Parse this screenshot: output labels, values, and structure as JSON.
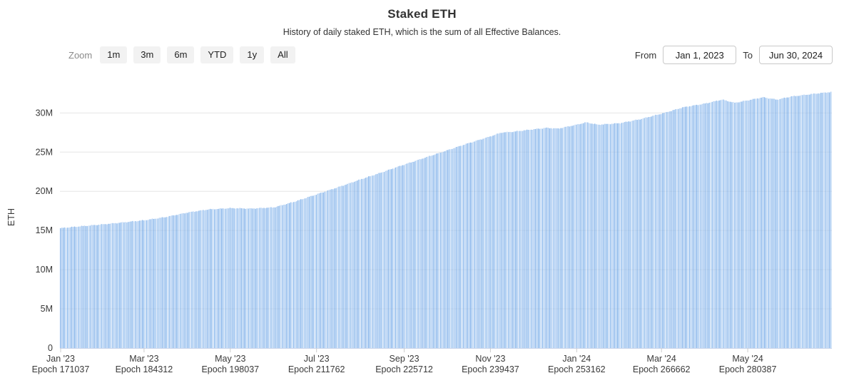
{
  "header": {
    "title": "Staked ETH",
    "subtitle": "History of daily staked ETH, which is the sum of all Effective Balances."
  },
  "toolbar": {
    "zoom_label": "Zoom",
    "zoom_buttons": [
      "1m",
      "3m",
      "6m",
      "YTD",
      "1y",
      "All"
    ],
    "from_label": "From",
    "from_value": "Jan 1, 2023",
    "to_label": "To",
    "to_value": "Jun 30, 2024"
  },
  "chart_data": {
    "type": "bar",
    "title": "Staked ETH",
    "subtitle": "History of daily staked ETH, which is the sum of all Effective Balances.",
    "xlabel": "",
    "ylabel": "ETH",
    "x_range": [
      "Jan 1, 2023",
      "Jun 30, 2024"
    ],
    "days": 546,
    "ylim": [
      0,
      33400000
    ],
    "grid": "horizontal",
    "legend": "none",
    "yticks": [
      {
        "value": 0,
        "label": "0"
      },
      {
        "value": 5000000,
        "label": "5M"
      },
      {
        "value": 10000000,
        "label": "10M"
      },
      {
        "value": 15000000,
        "label": "15M"
      },
      {
        "value": 20000000,
        "label": "20M"
      },
      {
        "value": 25000000,
        "label": "25M"
      },
      {
        "value": 30000000,
        "label": "30M"
      }
    ],
    "xticks": [
      {
        "day": 0,
        "label": "Jan '23",
        "epoch": "Epoch 171037"
      },
      {
        "day": 59,
        "label": "Mar '23",
        "epoch": "Epoch 184312"
      },
      {
        "day": 120,
        "label": "May '23",
        "epoch": "Epoch 198037"
      },
      {
        "day": 181,
        "label": "Jul '23",
        "epoch": "Epoch 211762"
      },
      {
        "day": 243,
        "label": "Sep '23",
        "epoch": "Epoch 225712"
      },
      {
        "day": 304,
        "label": "Nov '23",
        "epoch": "Epoch 239437"
      },
      {
        "day": 365,
        "label": "Jan '24",
        "epoch": "Epoch 253162"
      },
      {
        "day": 425,
        "label": "Mar '24",
        "epoch": "Epoch 266662"
      },
      {
        "day": 486,
        "label": "May '24",
        "epoch": "Epoch 280387"
      }
    ],
    "series": [
      {
        "name": "Staked ETH",
        "unit": "ETH",
        "note": "daily values, approximate waypoints read from chart as [day_index, million_ETH]; daily bars are linearly interpolated between waypoints",
        "waypoints_day_millionEth": [
          [
            0,
            15.3
          ],
          [
            15,
            15.55
          ],
          [
            31,
            15.8
          ],
          [
            45,
            16.05
          ],
          [
            59,
            16.3
          ],
          [
            74,
            16.7
          ],
          [
            90,
            17.3
          ],
          [
            105,
            17.7
          ],
          [
            120,
            17.85
          ],
          [
            135,
            17.8
          ],
          [
            151,
            17.95
          ],
          [
            166,
            18.7
          ],
          [
            181,
            19.6
          ],
          [
            196,
            20.5
          ],
          [
            212,
            21.5
          ],
          [
            227,
            22.4
          ],
          [
            243,
            23.4
          ],
          [
            258,
            24.3
          ],
          [
            273,
            25.2
          ],
          [
            288,
            26.1
          ],
          [
            304,
            27.0
          ],
          [
            312,
            27.5
          ],
          [
            320,
            27.6
          ],
          [
            334,
            27.9
          ],
          [
            344,
            28.1
          ],
          [
            352,
            28.0
          ],
          [
            365,
            28.5
          ],
          [
            372,
            28.8
          ],
          [
            380,
            28.5
          ],
          [
            388,
            28.6
          ],
          [
            396,
            28.7
          ],
          [
            410,
            29.2
          ],
          [
            425,
            29.9
          ],
          [
            440,
            30.7
          ],
          [
            456,
            31.2
          ],
          [
            468,
            31.7
          ],
          [
            477,
            31.3
          ],
          [
            486,
            31.6
          ],
          [
            497,
            32.0
          ],
          [
            507,
            31.7
          ],
          [
            517,
            32.1
          ],
          [
            531,
            32.4
          ],
          [
            546,
            32.7
          ]
        ]
      }
    ],
    "colors": {
      "bar_palette": [
        "#86b4ea",
        "#9cc2ef",
        "#aecdf2",
        "#8ab8ec",
        "#c2d9f5",
        "#90bcee",
        "#7fb0e9",
        "#a6c9f1"
      ],
      "gridline": "#e6e6e6",
      "axis_line": "#ccd6eb",
      "tick_mark": "#cccccc",
      "axis_text": "#3a3a3a"
    }
  }
}
